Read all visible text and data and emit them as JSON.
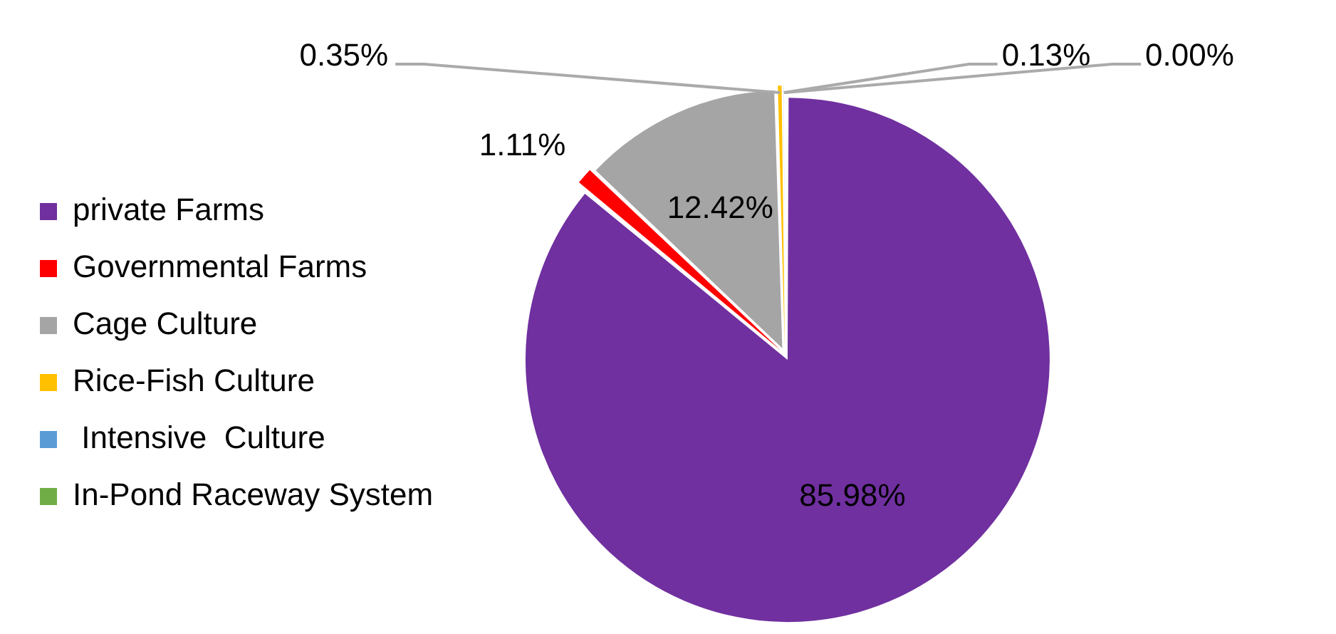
{
  "chart_data": {
    "type": "pie",
    "categories": [
      "private Farms",
      "Governmental Farms",
      "Cage Culture",
      "Rice-Fish Culture",
      " Intensive  Culture",
      "In-Pond Raceway System"
    ],
    "values": [
      85.98,
      1.11,
      12.42,
      0.35,
      0.13,
      0.0
    ],
    "colors": [
      "#7030a0",
      "#ff0000",
      "#a5a5a5",
      "#ffc000",
      "#5b9bd5",
      "#70ad47"
    ],
    "value_labels": [
      "85.98%",
      "1.11%",
      "12.42%",
      "0.35%",
      "0.13%",
      "0.00%"
    ],
    "legend": "left"
  }
}
